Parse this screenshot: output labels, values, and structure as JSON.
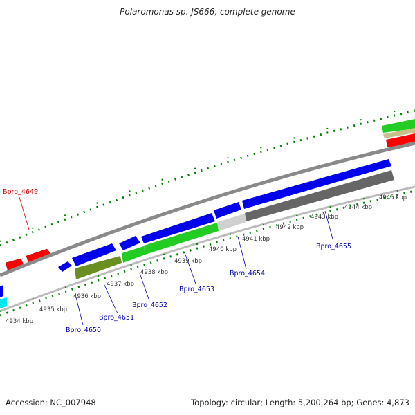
{
  "title": "Polaromonas sp. JS666, complete genome",
  "accession_text": "Accession: NC_007948",
  "summary_text": "Topology: circular; Length: 5,200,264 bp; Genes: 4,873",
  "colors": {
    "forward_gene": "#ff0000",
    "reverse_gene": "#0000ee",
    "cyan_gene": "#00e5ee",
    "tick": "#008000",
    "backbone": "#888888",
    "label_blue": "#0000aa",
    "label_red": "#cc0000"
  },
  "kbp_labels": [
    "4934 kbp",
    "4935 kbp",
    "4936 kbp",
    "4937 kbp",
    "4938 kbp",
    "4939 kbp",
    "4940 kbp",
    "4941 kbp",
    "4942 kbp",
    "4943 kbp",
    "4944 kbp",
    "4945 kbp"
  ],
  "gene_labels": [
    "Bpro_4649",
    "Bpro_4650",
    "Bpro_4651",
    "Bpro_4652",
    "Bpro_4653",
    "Bpro_4654",
    "Bpro_4655"
  ]
}
